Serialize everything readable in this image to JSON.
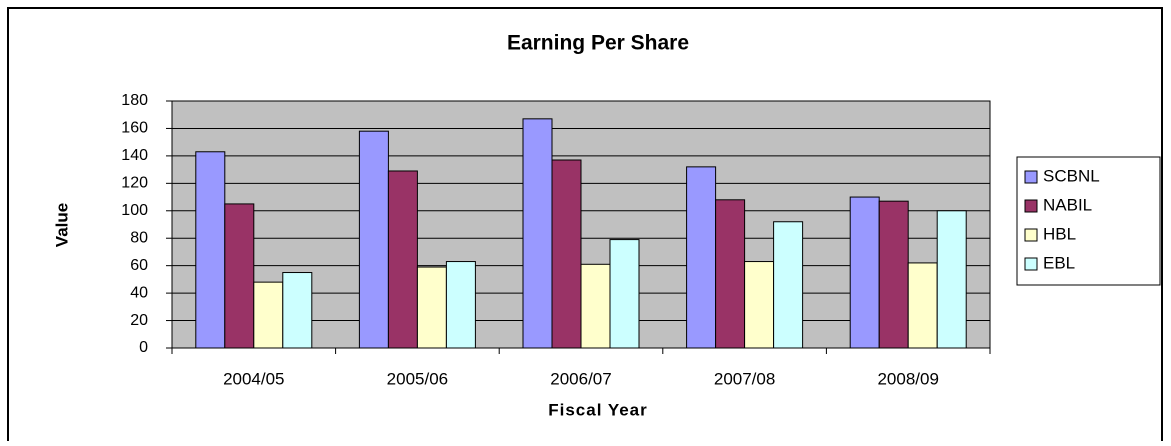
{
  "chart_data": {
    "type": "bar",
    "title": "Earning Per Share",
    "x_label": "Fiscal Year",
    "y_label": "Value",
    "categories": [
      "2004/05",
      "2005/06",
      "2006/07",
      "2007/08",
      "2008/09"
    ],
    "series": [
      {
        "name": "SCBNL",
        "color": "#9999ff",
        "values": [
          143,
          158,
          167,
          132,
          110
        ]
      },
      {
        "name": "NABIL",
        "color": "#993366",
        "values": [
          105,
          129,
          137,
          108,
          107
        ]
      },
      {
        "name": "HBL",
        "color": "#ffffcc",
        "values": [
          48,
          59,
          61,
          63,
          62
        ]
      },
      {
        "name": "EBL",
        "color": "#ccffff",
        "values": [
          55,
          63,
          79,
          92,
          100
        ]
      }
    ],
    "ylim": [
      0,
      180
    ],
    "yticks": [
      0,
      20,
      40,
      60,
      80,
      100,
      120,
      140,
      160,
      180
    ],
    "grid": true,
    "legend": "right",
    "plot_background": "#c0c0c0"
  }
}
